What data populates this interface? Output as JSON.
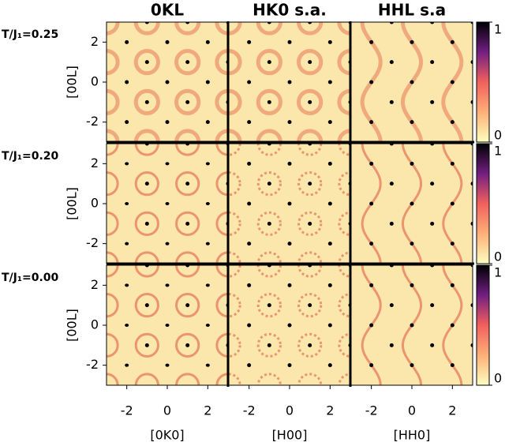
{
  "chart_data": {
    "type": "heatmap-grid",
    "columns": [
      {
        "title": "0KL",
        "x_label": "[0K0]"
      },
      {
        "title": "HK0 s.a.",
        "x_label": "[H00]"
      },
      {
        "title": "HHL s.a",
        "x_label": "[HH0]"
      }
    ],
    "rows": [
      {
        "label": "T/J₁=0.25",
        "y_label": "[00L]"
      },
      {
        "label": "T/J₁=0.20",
        "y_label": "[00L]"
      },
      {
        "label": "T/J₁=0.00",
        "y_label": "[00L]"
      }
    ],
    "xlim": [
      -3,
      3
    ],
    "ylim": [
      -3,
      3
    ],
    "xticks": [
      -2,
      0,
      2
    ],
    "yticks": [
      -2,
      0,
      2
    ],
    "colorbar_lim": [
      0,
      1
    ],
    "colorbar_ticks": [
      0,
      1
    ]
  }
}
